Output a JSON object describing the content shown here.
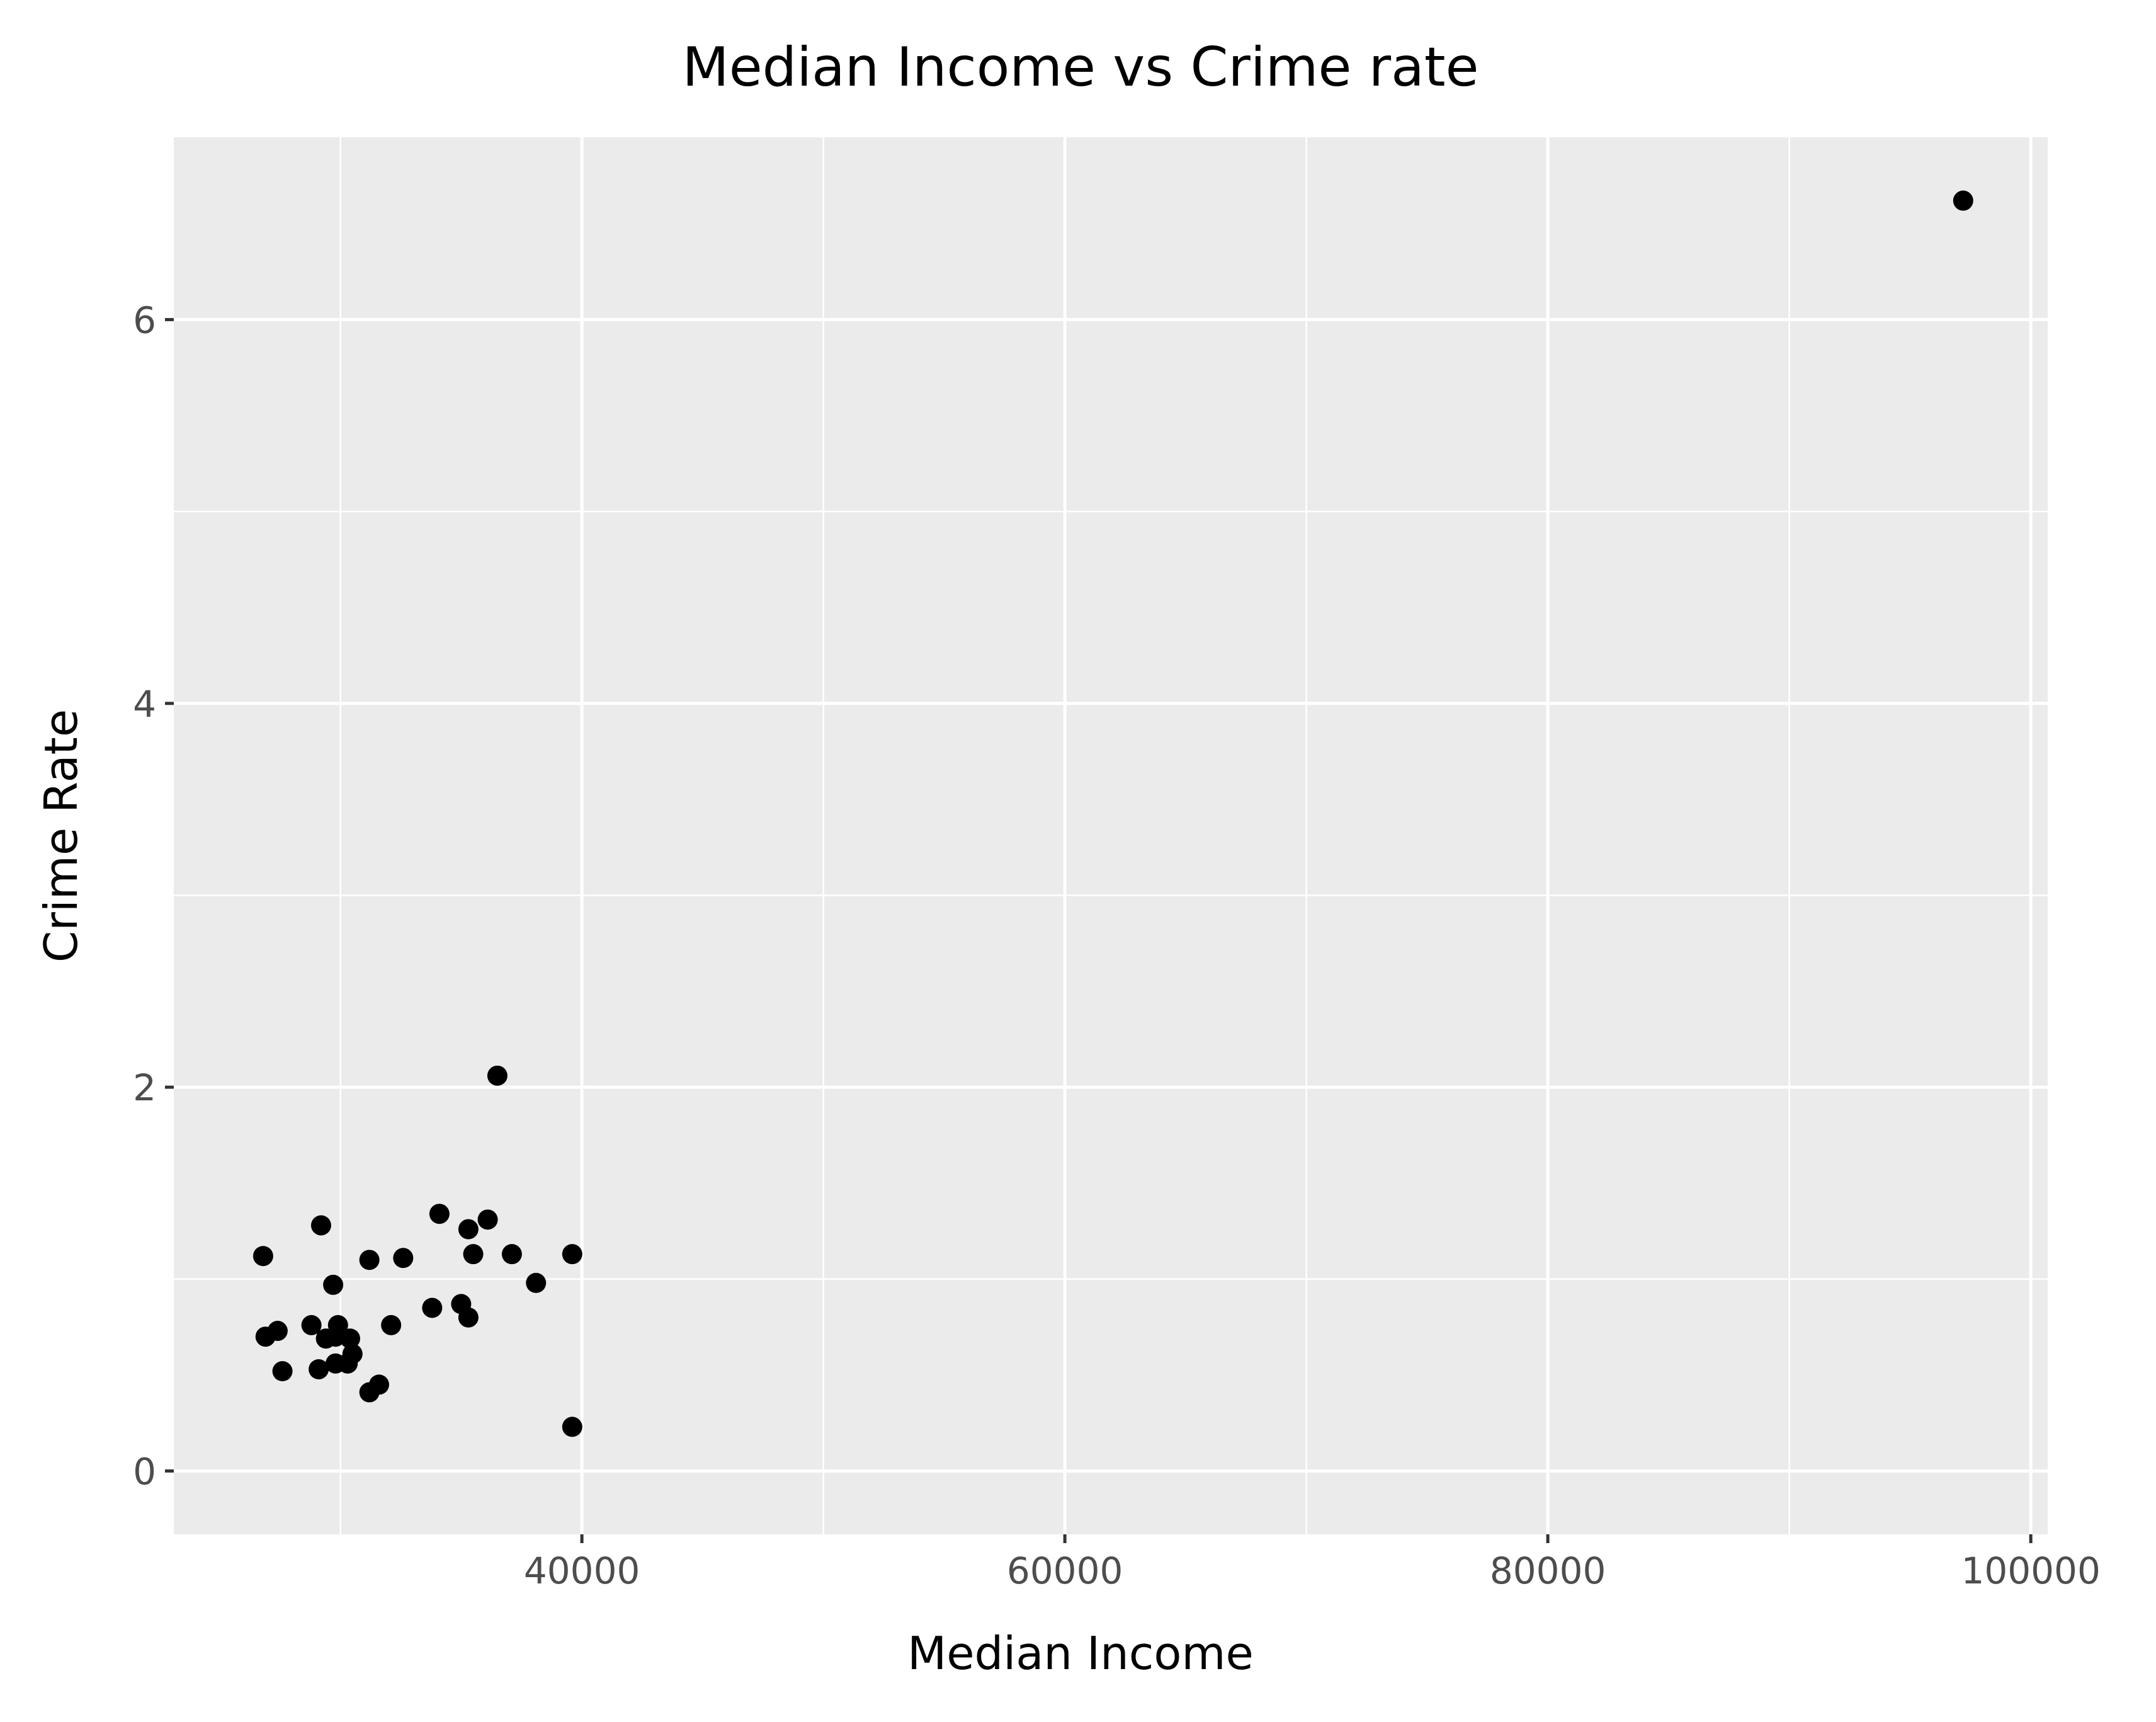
{
  "chart_data": {
    "type": "scatter",
    "title": "Median Income vs Crime rate",
    "xlabel": "Median Income",
    "ylabel": "Crime Rate",
    "xlim": [
      23100,
      100700
    ],
    "ylim": [
      -0.33,
      6.95
    ],
    "x_ticks": [
      40000,
      60000,
      80000,
      100000
    ],
    "y_ticks": [
      0,
      2,
      4,
      6
    ],
    "grid": true,
    "legend": "none",
    "series": [
      {
        "color": "#000000",
        "points": [
          {
            "x": 26800,
            "y": 1.12
          },
          {
            "x": 26900,
            "y": 0.7
          },
          {
            "x": 27400,
            "y": 0.73
          },
          {
            "x": 27600,
            "y": 0.52
          },
          {
            "x": 28800,
            "y": 0.76
          },
          {
            "x": 29100,
            "y": 0.53
          },
          {
            "x": 29200,
            "y": 1.28
          },
          {
            "x": 29400,
            "y": 0.69
          },
          {
            "x": 29700,
            "y": 0.97
          },
          {
            "x": 29800,
            "y": 0.56
          },
          {
            "x": 29800,
            "y": 0.7
          },
          {
            "x": 29900,
            "y": 0.76
          },
          {
            "x": 30300,
            "y": 0.56
          },
          {
            "x": 30400,
            "y": 0.69
          },
          {
            "x": 30500,
            "y": 0.61
          },
          {
            "x": 31200,
            "y": 0.41
          },
          {
            "x": 31200,
            "y": 1.1
          },
          {
            "x": 31600,
            "y": 0.45
          },
          {
            "x": 32100,
            "y": 0.76
          },
          {
            "x": 32600,
            "y": 1.11
          },
          {
            "x": 33800,
            "y": 0.85
          },
          {
            "x": 34100,
            "y": 1.34
          },
          {
            "x": 35000,
            "y": 0.87
          },
          {
            "x": 35300,
            "y": 0.8
          },
          {
            "x": 35300,
            "y": 1.26
          },
          {
            "x": 35500,
            "y": 1.13
          },
          {
            "x": 36100,
            "y": 1.31
          },
          {
            "x": 36500,
            "y": 2.06
          },
          {
            "x": 37100,
            "y": 1.13
          },
          {
            "x": 38100,
            "y": 0.98
          },
          {
            "x": 39600,
            "y": 1.13
          },
          {
            "x": 39600,
            "y": 0.23
          },
          {
            "x": 97200,
            "y": 6.62
          }
        ]
      }
    ]
  }
}
